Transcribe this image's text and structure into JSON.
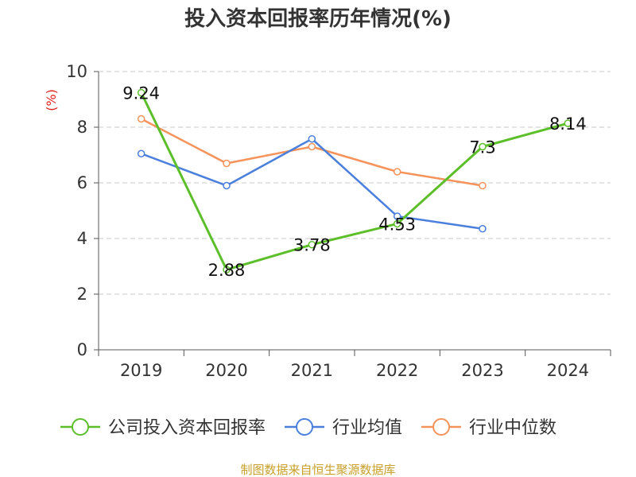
{
  "chart_data": {
    "type": "line",
    "title": "投入资本回报率历年情况(%)",
    "ylabel": "(%)",
    "xlabel": "",
    "categories": [
      "2019",
      "2020",
      "2021",
      "2022",
      "2023",
      "2024"
    ],
    "ylim": [
      0,
      10
    ],
    "yticks": [
      0,
      2,
      4,
      6,
      8,
      10
    ],
    "grid": true,
    "legend_position": "bottom",
    "series": [
      {
        "name": "公司投入资本回报率",
        "color": "#5cbf2a",
        "values": [
          9.24,
          2.88,
          3.78,
          4.53,
          7.3,
          8.14
        ],
        "labels": [
          "9.24",
          "2.88",
          "3.78",
          "4.53",
          "7.3",
          "8.14"
        ]
      },
      {
        "name": "行业均值",
        "color": "#4a7fdc",
        "values": [
          7.05,
          5.9,
          7.58,
          4.8,
          4.35,
          null
        ]
      },
      {
        "name": "行业中位数",
        "color": "#f5935a",
        "values": [
          8.3,
          6.7,
          7.3,
          6.4,
          5.9,
          null
        ]
      }
    ]
  },
  "source": "制图数据来自恒生聚源数据库"
}
